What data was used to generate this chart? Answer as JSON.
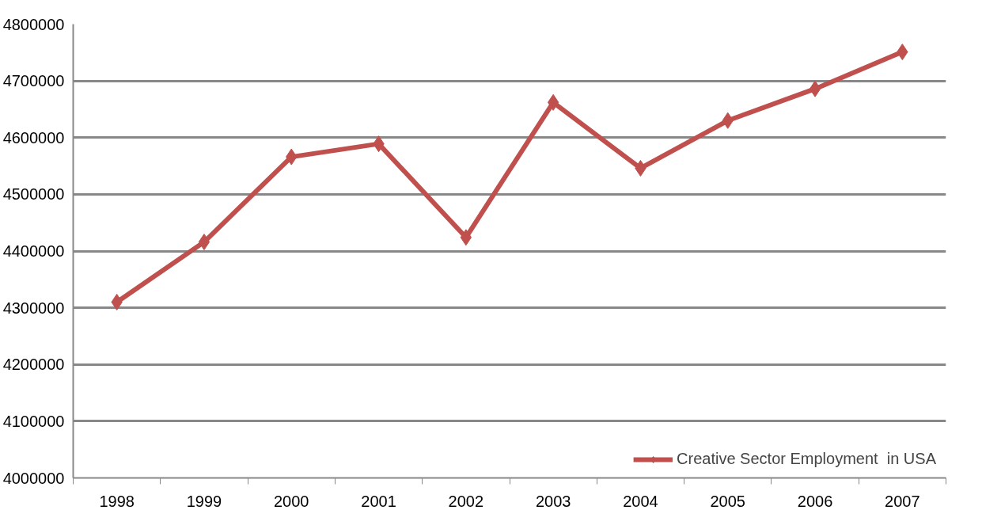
{
  "chart_data": {
    "type": "line",
    "categories": [
      "1998",
      "1999",
      "2000",
      "2001",
      "2002",
      "2003",
      "2004",
      "2005",
      "2006",
      "2007"
    ],
    "series": [
      {
        "name": "Creative Sector Employment  in USA",
        "color": "#c0504d",
        "values": [
          4310000,
          4416000,
          4566000,
          4589000,
          4424000,
          4662000,
          4546000,
          4630000,
          4686000,
          4751000
        ]
      }
    ],
    "ylim": [
      4000000,
      4800000
    ],
    "yticks": [
      4000000,
      4100000,
      4200000,
      4300000,
      4400000,
      4500000,
      4600000,
      4700000,
      4800000
    ],
    "grid": "y",
    "legend": "bottom right",
    "marker": "diamond",
    "line_style": "solid"
  }
}
